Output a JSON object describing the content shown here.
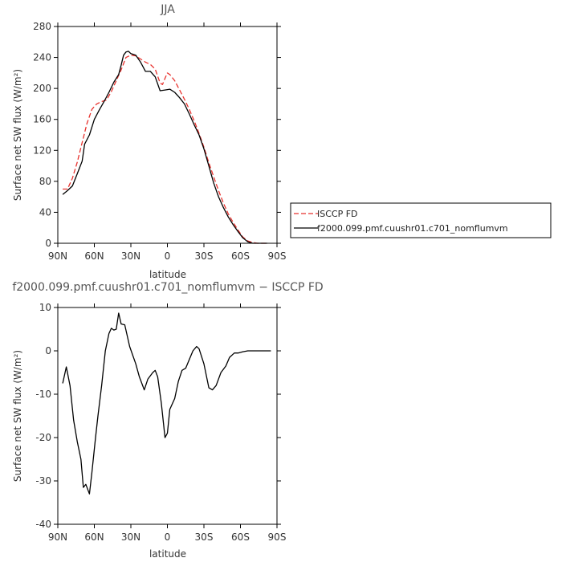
{
  "chart_data": [
    {
      "type": "line",
      "title": "JJA",
      "xlabel": "latitude",
      "ylabel": "Surface net SW flux (W/m²)",
      "xlim": [
        90,
        -90
      ],
      "ylim": [
        0,
        280
      ],
      "x_ticks": [
        "90N",
        "60N",
        "30N",
        "0",
        "30S",
        "60S",
        "90S"
      ],
      "y_ticks": [
        0,
        40,
        80,
        120,
        160,
        200,
        240,
        280
      ],
      "legend_position": "right",
      "series": [
        {
          "name": "ISCCP FD",
          "color": "#e8322e",
          "dash": true,
          "points": [
            [
              86,
              70
            ],
            [
              82,
              70
            ],
            [
              78,
              84
            ],
            [
              74,
              105
            ],
            [
              70,
              130
            ],
            [
              66,
              155
            ],
            [
              62,
              173
            ],
            [
              58,
              180
            ],
            [
              54,
              183
            ],
            [
              50,
              185
            ],
            [
              46,
              196
            ],
            [
              42,
              210
            ],
            [
              38,
              224
            ],
            [
              34,
              240
            ],
            [
              30,
              243
            ],
            [
              26,
              242
            ],
            [
              22,
              238
            ],
            [
              18,
              234
            ],
            [
              14,
              231
            ],
            [
              10,
              225
            ],
            [
              6,
              207
            ],
            [
              4,
              205
            ],
            [
              2,
              213
            ],
            [
              0,
              220
            ],
            [
              -2,
              218
            ],
            [
              -6,
              210
            ],
            [
              -10,
              198
            ],
            [
              -14,
              186
            ],
            [
              -18,
              173
            ],
            [
              -22,
              158
            ],
            [
              -26,
              142
            ],
            [
              -30,
              124
            ],
            [
              -34,
              104
            ],
            [
              -38,
              86
            ],
            [
              -42,
              68
            ],
            [
              -46,
              52
            ],
            [
              -50,
              38
            ],
            [
              -54,
              27
            ],
            [
              -58,
              17
            ],
            [
              -62,
              8
            ],
            [
              -66,
              3
            ],
            [
              -70,
              1
            ],
            [
              -74,
              0
            ],
            [
              -78,
              0
            ],
            [
              -82,
              0
            ]
          ]
        },
        {
          "name": "f2000.099.pmf.cuushr01.c701_nomflumvm",
          "color": "#000000",
          "dash": false,
          "points": [
            [
              86,
              63
            ],
            [
              82,
              68
            ],
            [
              78,
              74
            ],
            [
              74,
              90
            ],
            [
              70,
              106
            ],
            [
              68,
              128
            ],
            [
              64,
              140
            ],
            [
              60,
              160
            ],
            [
              56,
              172
            ],
            [
              52,
              183
            ],
            [
              48,
              195
            ],
            [
              44,
              208
            ],
            [
              40,
              218
            ],
            [
              38,
              230
            ],
            [
              36,
              243
            ],
            [
              34,
              247
            ],
            [
              32,
              248
            ],
            [
              30,
              245
            ],
            [
              26,
              243
            ],
            [
              22,
              234
            ],
            [
              18,
              222
            ],
            [
              14,
              222
            ],
            [
              10,
              215
            ],
            [
              6,
              197
            ],
            [
              2,
              198
            ],
            [
              -2,
              199
            ],
            [
              -6,
              195
            ],
            [
              -10,
              188
            ],
            [
              -14,
              180
            ],
            [
              -18,
              167
            ],
            [
              -22,
              153
            ],
            [
              -26,
              140
            ],
            [
              -30,
              122
            ],
            [
              -34,
              100
            ],
            [
              -38,
              78
            ],
            [
              -42,
              60
            ],
            [
              -46,
              46
            ],
            [
              -50,
              34
            ],
            [
              -54,
              24
            ],
            [
              -58,
              15
            ],
            [
              -62,
              7
            ],
            [
              -66,
              2
            ],
            [
              -70,
              0
            ],
            [
              -74,
              0
            ],
            [
              -78,
              0
            ],
            [
              -82,
              0
            ]
          ]
        }
      ]
    },
    {
      "type": "line",
      "title": "f2000.099.pmf.cuushr01.c701_nomflumvm − ISCCP FD",
      "xlabel": "latitude",
      "ylabel": "Surface net SW flux (W/m²)",
      "xlim": [
        90,
        -90
      ],
      "ylim": [
        -40,
        10
      ],
      "x_ticks": [
        "90N",
        "60N",
        "30N",
        "0",
        "30S",
        "60S",
        "90S"
      ],
      "y_ticks": [
        -40,
        -30,
        -20,
        -10,
        0,
        10
      ],
      "series": [
        {
          "color": "#000000",
          "dash": false,
          "points": [
            [
              86,
              -7.5
            ],
            [
              83,
              -3.7
            ],
            [
              80,
              -8
            ],
            [
              77,
              -16
            ],
            [
              74,
              -21
            ],
            [
              71,
              -25
            ],
            [
              69,
              -31.5
            ],
            [
              67,
              -30.8
            ],
            [
              64,
              -33
            ],
            [
              62,
              -28
            ],
            [
              59,
              -20
            ],
            [
              57,
              -15
            ],
            [
              54,
              -8
            ],
            [
              51,
              0
            ],
            [
              48,
              4
            ],
            [
              46,
              5.2
            ],
            [
              44,
              4.8
            ],
            [
              42,
              5
            ],
            [
              40,
              8.7
            ],
            [
              38,
              6.2
            ],
            [
              35,
              6
            ],
            [
              31,
              1
            ],
            [
              26,
              -3
            ],
            [
              23,
              -6
            ],
            [
              19,
              -9
            ],
            [
              16,
              -6.5
            ],
            [
              12,
              -5
            ],
            [
              10,
              -4.5
            ],
            [
              8,
              -6
            ],
            [
              5,
              -12
            ],
            [
              2,
              -20
            ],
            [
              0,
              -19
            ],
            [
              -2,
              -13.5
            ],
            [
              -6,
              -11
            ],
            [
              -9,
              -7
            ],
            [
              -12,
              -4.5
            ],
            [
              -15,
              -4
            ],
            [
              -18,
              -2
            ],
            [
              -21,
              0
            ],
            [
              -24,
              1
            ],
            [
              -26,
              0.5
            ],
            [
              -30,
              -3
            ],
            [
              -34,
              -8.5
            ],
            [
              -37,
              -9
            ],
            [
              -40,
              -8
            ],
            [
              -44,
              -5
            ],
            [
              -48,
              -3.5
            ],
            [
              -51,
              -1.5
            ],
            [
              -55,
              -0.5
            ],
            [
              -58,
              -0.5
            ],
            [
              -62,
              -0.2
            ],
            [
              -66,
              0
            ],
            [
              -70,
              0
            ],
            [
              -76,
              0
            ],
            [
              -80,
              0
            ],
            [
              -85,
              0
            ]
          ]
        }
      ]
    }
  ]
}
